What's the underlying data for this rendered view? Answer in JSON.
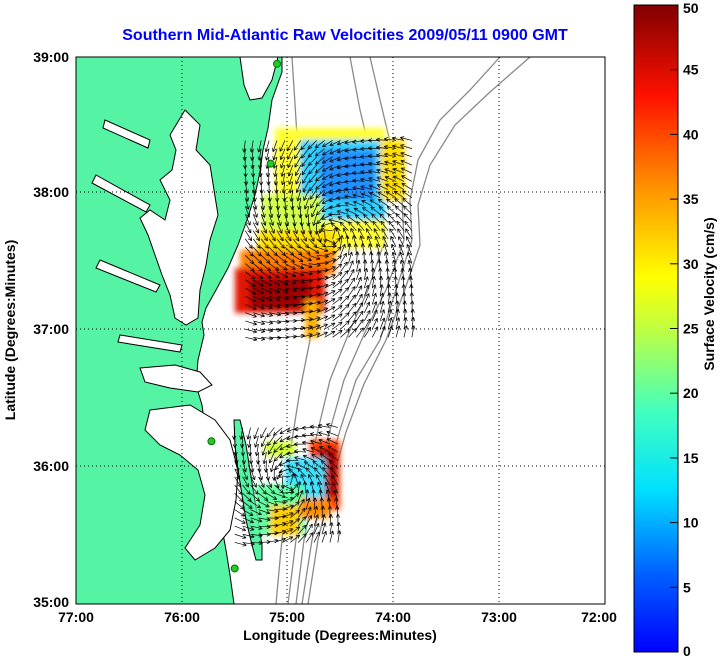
{
  "title": "Southern Mid-Atlantic Raw Velocities 2009/05/11 0900 GMT",
  "x_axis": {
    "label": "Longitude (Degrees:Minutes)",
    "ticks": [
      "77:00",
      "76:00",
      "75:00",
      "74:00",
      "73:00",
      "72:00"
    ],
    "range": [
      -77,
      -72
    ]
  },
  "y_axis": {
    "label": "Latitude (Degrees:Minutes)",
    "ticks": [
      "39:00",
      "38:00",
      "37:00",
      "36:00",
      "35:00"
    ],
    "range": [
      35,
      39
    ]
  },
  "colorbar": {
    "label": "Surface Velocity (cm/s)",
    "ticks": [
      "0",
      "5",
      "10",
      "15",
      "20",
      "25",
      "30",
      "35",
      "40",
      "45",
      "50"
    ],
    "range": [
      0,
      50
    ],
    "colormap": [
      "#0000ff",
      "#0080ff",
      "#00ffff",
      "#80ff80",
      "#ffff00",
      "#ff8000",
      "#ff0000",
      "#800000"
    ]
  },
  "grid": true,
  "colors": {
    "land": "#54f4a4",
    "title": "#0000ff",
    "bathymetry": "#8a8a8a",
    "station": "#22cc22"
  },
  "map_layers": [
    "coastline",
    "bathymetry-contours",
    "hf-radar-stations",
    "velocity-field",
    "velocity-vectors"
  ],
  "stations": [
    {
      "lon": -75.1,
      "lat": 38.95
    },
    {
      "lon": -75.16,
      "lat": 38.22
    },
    {
      "lon": -75.72,
      "lat": 36.19
    },
    {
      "lon": -75.5,
      "lat": 35.26
    }
  ],
  "velocity_regions": [
    {
      "region": "north",
      "lon_range": [
        -75.4,
        -73.8
      ],
      "lat_range": [
        36.95,
        38.45
      ],
      "speed_range_cm_s": [
        5,
        50
      ]
    },
    {
      "region": "south",
      "lon_range": [
        -75.5,
        -74.5
      ],
      "lat_range": [
        35.45,
        36.35
      ],
      "speed_range_cm_s": [
        5,
        50
      ]
    }
  ]
}
